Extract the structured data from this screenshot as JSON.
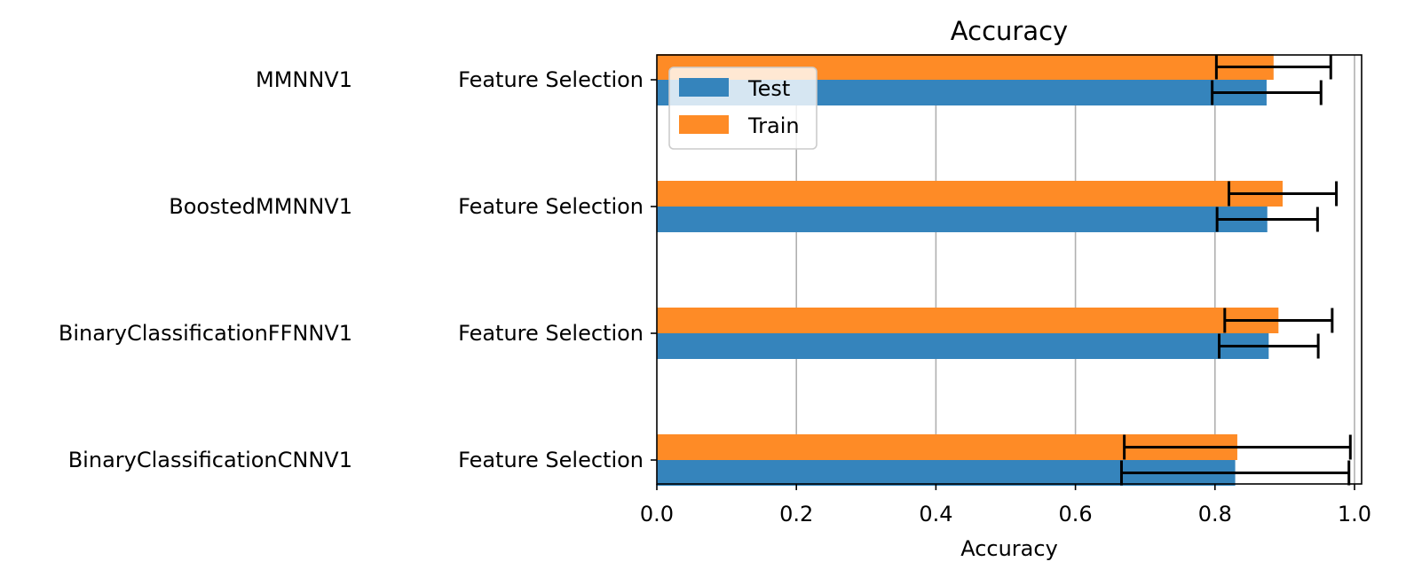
{
  "chart_data": {
    "type": "bar",
    "orientation": "horizontal",
    "title": "Accuracy",
    "xlabel": "Accuracy",
    "ylabel": "",
    "xlim": [
      0.0,
      1.0
    ],
    "xticks": [
      "0.0",
      "0.2",
      "0.4",
      "0.6",
      "0.8",
      "1.0"
    ],
    "grid": "x-major",
    "legend_position": "top-left",
    "groups": [
      "MMNNV1",
      "BoostedMMNNV1",
      "BinaryClassificationFFNNV1",
      "BinaryClassificationCNNV1"
    ],
    "categories": [
      "Feature Selection",
      "Feature Selection",
      "Feature Selection",
      "Feature Selection"
    ],
    "series": [
      {
        "name": "Test",
        "color": "#3584bc",
        "values": [
          0.874,
          0.875,
          0.877,
          0.829
        ],
        "error": [
          0.078,
          0.072,
          0.071,
          0.163
        ]
      },
      {
        "name": "Train",
        "color": "#fe8b26",
        "values": [
          0.884,
          0.897,
          0.891,
          0.832
        ],
        "error": [
          0.082,
          0.077,
          0.077,
          0.162
        ]
      }
    ]
  }
}
